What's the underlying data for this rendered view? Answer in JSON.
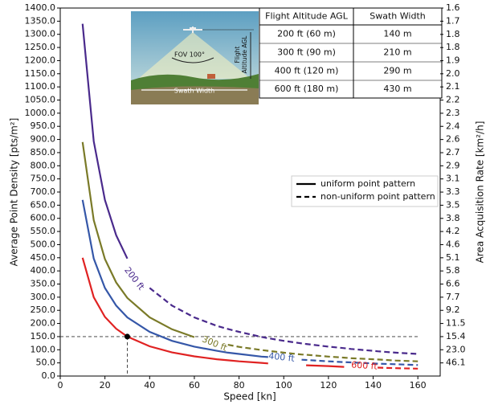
{
  "chart_data": {
    "type": "line",
    "xlabel": "Speed [kn]",
    "ylabel": "Average Point Density [pts/m²]",
    "y2label": "Area Acquisition Rate [km²/h]",
    "xlim": [
      0,
      170
    ],
    "xticks": [
      0,
      20,
      40,
      60,
      80,
      100,
      120,
      140,
      160
    ],
    "ylim": [
      0,
      1400
    ],
    "yticks": [
      {
        "value": 0,
        "label": "0.0"
      },
      {
        "value": 50,
        "label": "50.0"
      },
      {
        "value": 100,
        "label": "100.0"
      },
      {
        "value": 150,
        "label": "150.0"
      },
      {
        "value": 200,
        "label": "200.0"
      },
      {
        "value": 250,
        "label": "250.0"
      },
      {
        "value": 300,
        "label": "300.0"
      },
      {
        "value": 350,
        "label": "350.0"
      },
      {
        "value": 400,
        "label": "400.0"
      },
      {
        "value": 450,
        "label": "450.0"
      },
      {
        "value": 500,
        "label": "500.0"
      },
      {
        "value": 550,
        "label": "550.0"
      },
      {
        "value": 600,
        "label": "600.0"
      },
      {
        "value": 650,
        "label": "650.0"
      },
      {
        "value": 700,
        "label": "700.0"
      },
      {
        "value": 750,
        "label": "750.0"
      },
      {
        "value": 800,
        "label": "800.0"
      },
      {
        "value": 850,
        "label": "850.0"
      },
      {
        "value": 900,
        "label": "900.0"
      },
      {
        "value": 950,
        "label": "950.0"
      },
      {
        "value": 1000,
        "label": "1000.0"
      },
      {
        "value": 1050,
        "label": "1050.0"
      },
      {
        "value": 1100,
        "label": "1100.0"
      },
      {
        "value": 1150,
        "label": "1150.0"
      },
      {
        "value": 1200,
        "label": "1200.0"
      },
      {
        "value": 1250,
        "label": "1250.0"
      },
      {
        "value": 1300,
        "label": "1300.0"
      },
      {
        "value": 1350,
        "label": "1350.0"
      },
      {
        "value": 1400,
        "label": "1400.0"
      }
    ],
    "y2scale": "reciprocal",
    "y2lim": [
      null,
      1.646
    ],
    "y2ticks": [
      {
        "value": 46.1,
        "label": "46.1"
      },
      {
        "value": 23.04,
        "label": "23.0"
      },
      {
        "value": 15.367,
        "label": "15.4"
      },
      {
        "value": 11.525,
        "label": "11.5"
      },
      {
        "value": 9.22,
        "label": "9.2"
      },
      {
        "value": 7.683,
        "label": "7.7"
      },
      {
        "value": 6.586,
        "label": "6.6"
      },
      {
        "value": 5.763,
        "label": "5.8"
      },
      {
        "value": 5.122,
        "label": "5.1"
      },
      {
        "value": 4.61,
        "label": "4.6"
      },
      {
        "value": 4.191,
        "label": "4.2"
      },
      {
        "value": 3.842,
        "label": "3.8"
      },
      {
        "value": 3.546,
        "label": "3.5"
      },
      {
        "value": 3.293,
        "label": "3.3"
      },
      {
        "value": 3.073,
        "label": "3.1"
      },
      {
        "value": 2.881,
        "label": "2.9"
      },
      {
        "value": 2.712,
        "label": "2.7"
      },
      {
        "value": 2.561,
        "label": "2.6"
      },
      {
        "value": 2.426,
        "label": "2.4"
      },
      {
        "value": 2.305,
        "label": "2.3"
      },
      {
        "value": 2.195,
        "label": "2.2"
      },
      {
        "value": 2.095,
        "label": "2.1"
      },
      {
        "value": 2.004,
        "label": "2.0"
      },
      {
        "value": 1.921,
        "label": "1.9"
      },
      {
        "value": 1.844,
        "label": "1.8"
      },
      {
        "value": 1.773,
        "label": "1.8"
      },
      {
        "value": 1.707,
        "label": "1.7"
      },
      {
        "value": 1.646,
        "label": "1.6"
      }
    ],
    "x": [
      10,
      15,
      20,
      25,
      30,
      40,
      50,
      60,
      70,
      75,
      80,
      90,
      93,
      100,
      108,
      110,
      120,
      127,
      130,
      140,
      142,
      150,
      160
    ],
    "series": [
      {
        "name": "200 ft",
        "color": "#4a2a8c",
        "values": [
          1340,
          893,
          670,
          536,
          447,
          null,
          null,
          null,
          null,
          null,
          null,
          null,
          null,
          null,
          null,
          null,
          null,
          null,
          null,
          null,
          null,
          null,
          null
        ],
        "nonuniform_values": [
          null,
          null,
          null,
          null,
          null,
          335,
          268,
          223,
          191,
          179,
          168,
          149,
          144,
          134,
          124,
          122,
          112,
          106,
          103,
          96,
          94,
          89,
          84
        ]
      },
      {
        "name": "300 ft",
        "color": "#7a7a28",
        "values": [
          890,
          593,
          445,
          356,
          297,
          223,
          178,
          148,
          null,
          null,
          null,
          null,
          null,
          null,
          null,
          null,
          null,
          null,
          null,
          null,
          null,
          null,
          null
        ],
        "nonuniform_values": [
          null,
          null,
          null,
          null,
          null,
          null,
          null,
          null,
          null,
          119,
          111,
          99,
          96,
          89,
          82,
          81,
          74,
          70,
          68,
          64,
          63,
          59,
          56
        ]
      },
      {
        "name": "400 ft",
        "color": "#3557a8",
        "values": [
          670,
          447,
          335,
          268,
          223,
          168,
          134,
          112,
          96,
          89,
          84,
          74,
          72,
          null,
          null,
          null,
          null,
          null,
          null,
          null,
          null,
          null,
          null
        ],
        "nonuniform_values": [
          null,
          null,
          null,
          null,
          null,
          null,
          null,
          null,
          null,
          null,
          null,
          null,
          null,
          null,
          62,
          61,
          56,
          53,
          52,
          48,
          47,
          45,
          42
        ]
      },
      {
        "name": "600 ft",
        "color": "#e02222",
        "values": [
          450,
          300,
          225,
          180,
          150,
          113,
          90,
          75,
          64,
          60,
          56,
          50,
          48,
          null,
          null,
          41,
          38,
          35,
          null,
          null,
          null,
          null,
          null
        ],
        "nonuniform_values": [
          null,
          null,
          null,
          null,
          null,
          null,
          null,
          null,
          null,
          null,
          null,
          null,
          null,
          null,
          null,
          null,
          null,
          null,
          null,
          null,
          32,
          30,
          28
        ]
      }
    ],
    "reference": {
      "x": 30,
      "y": 150
    },
    "legend": [
      "uniform point pattern",
      "non-uniform point pattern"
    ],
    "inset": {
      "fov": "FOV 100°",
      "altitude": [
        "Flight",
        "Altitude AGL"
      ],
      "swath": "Swath Width",
      "table": {
        "header": [
          "Flight Altitude AGL",
          "Swath Width"
        ],
        "rows": [
          [
            "200 ft (60 m)",
            "140 m"
          ],
          [
            "300 ft (90 m)",
            "210 m"
          ],
          [
            "400 ft (120 m)",
            "290 m"
          ],
          [
            "600 ft (180 m)",
            "430 m"
          ]
        ]
      }
    }
  }
}
